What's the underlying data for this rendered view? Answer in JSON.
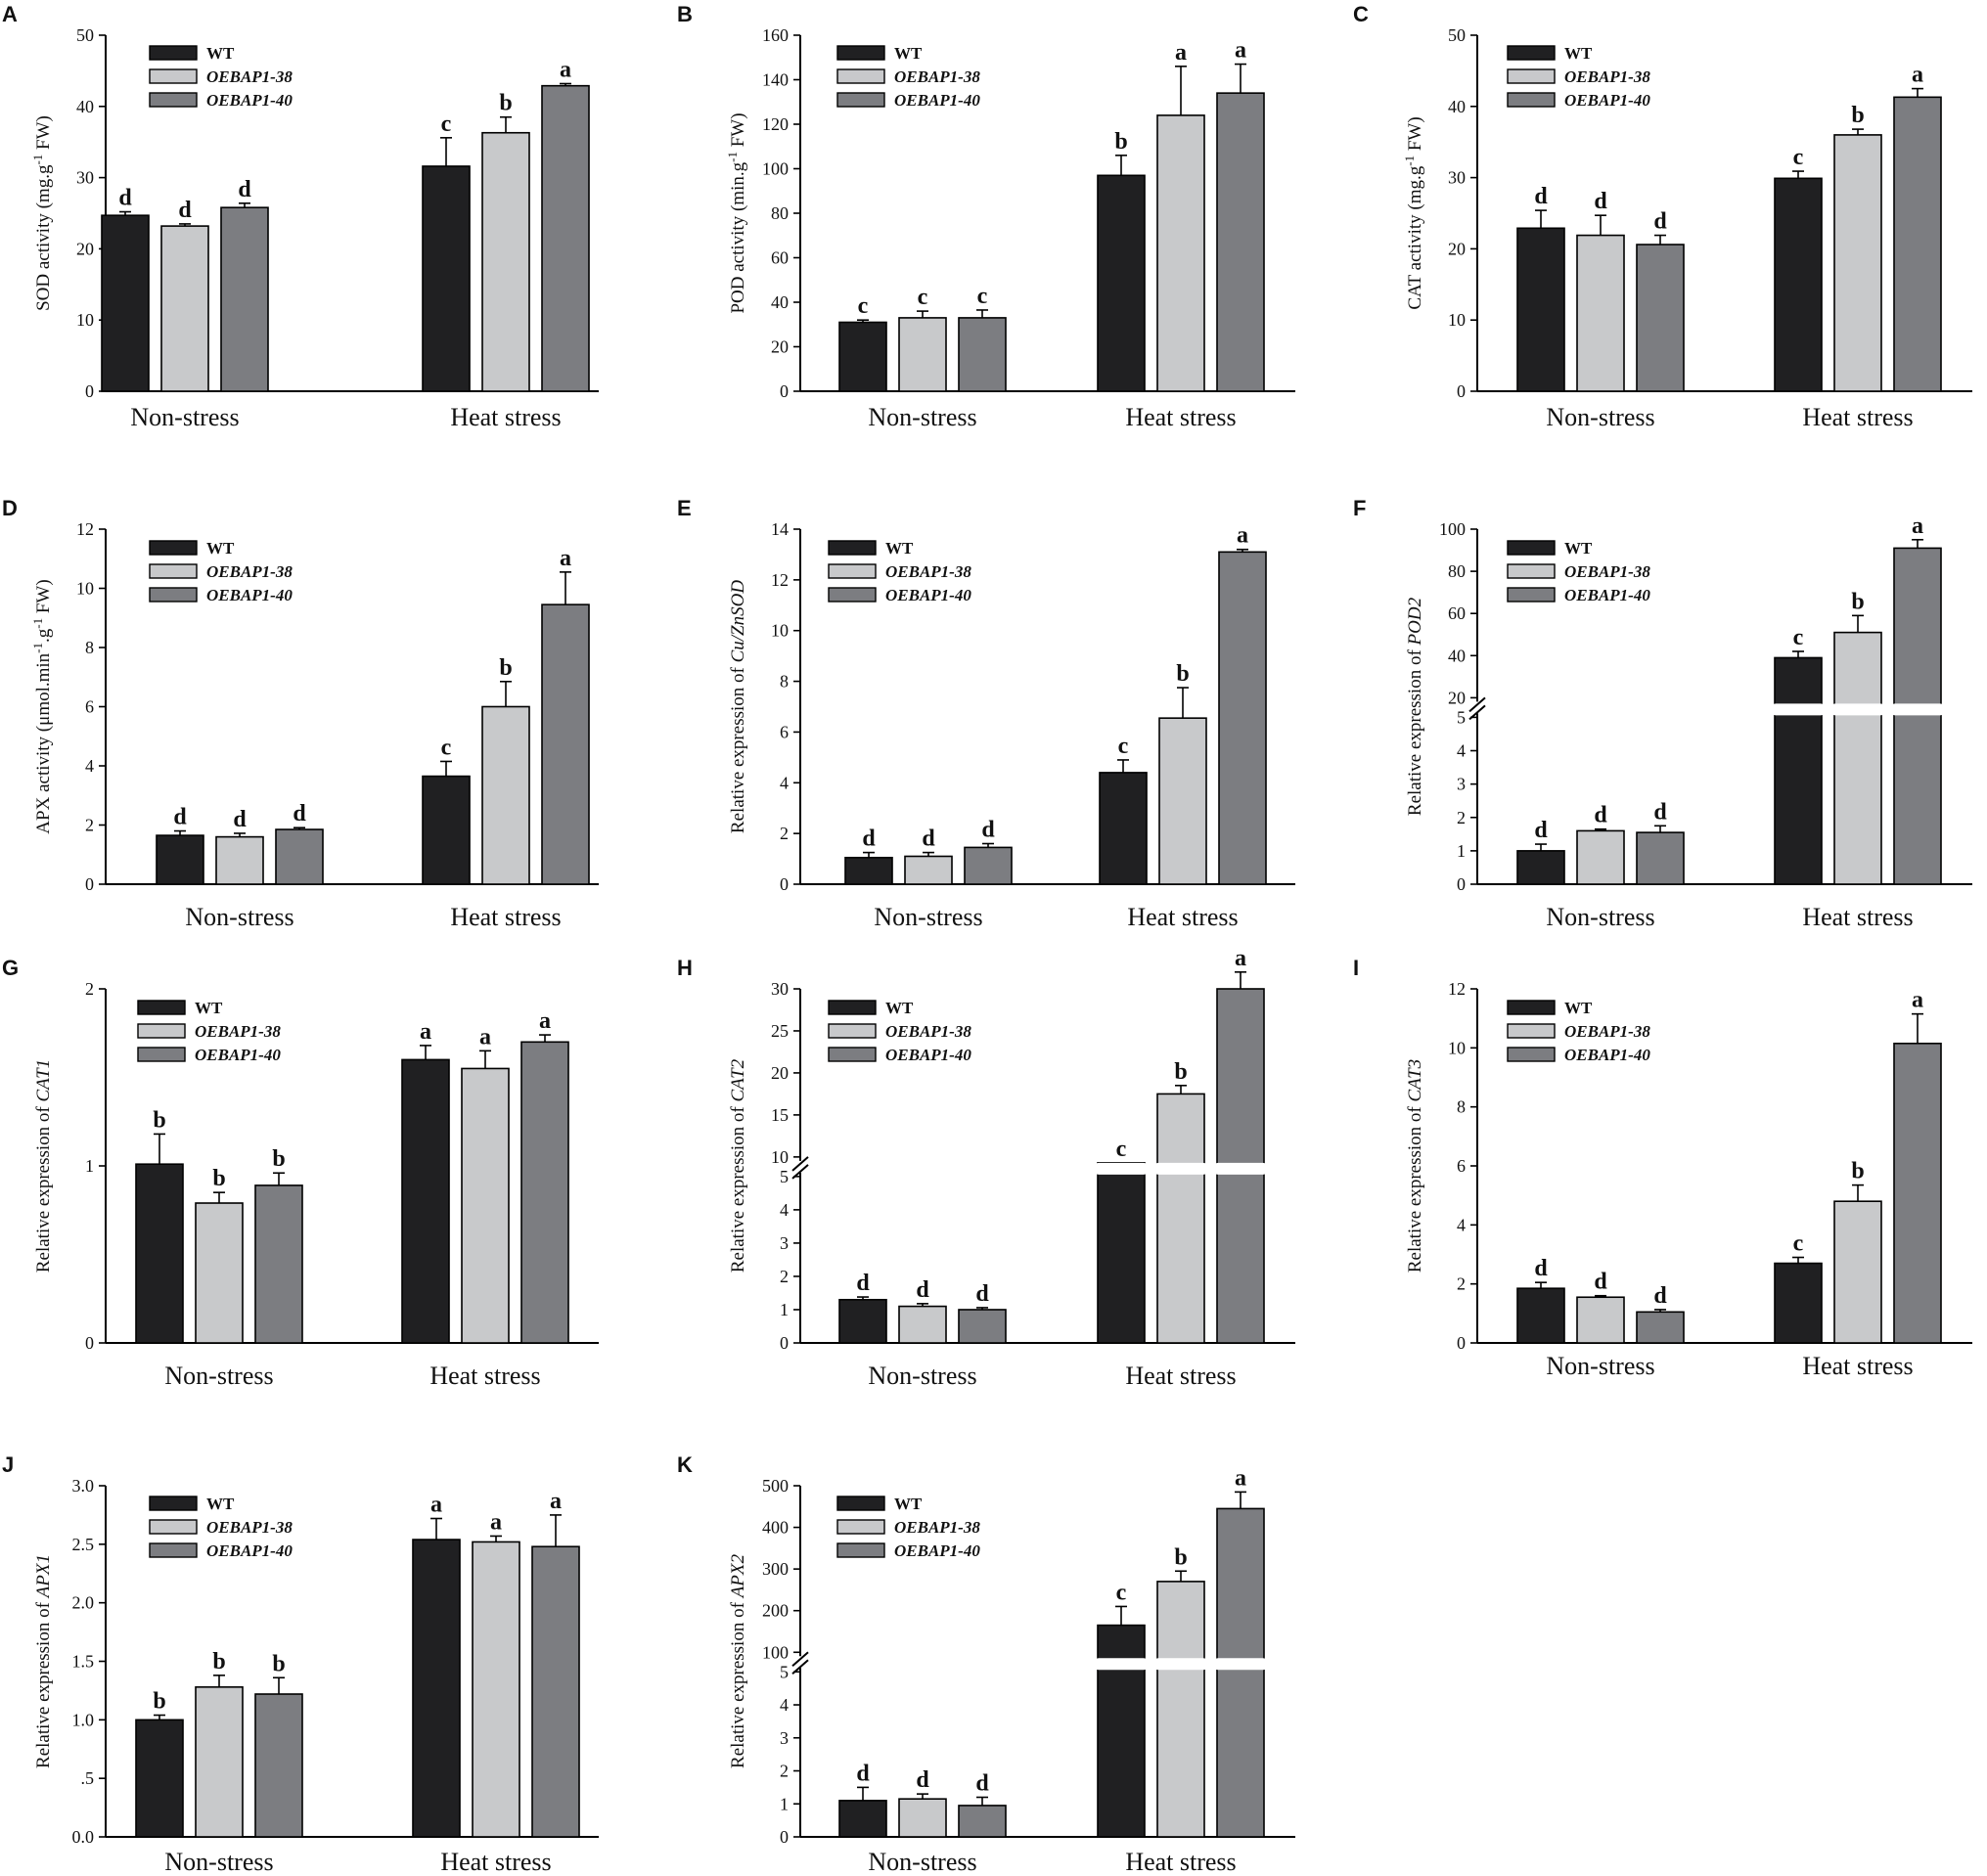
{
  "legend": {
    "series": [
      {
        "name": "WT",
        "color": "#202022",
        "italic": false
      },
      {
        "name": "OEBAP1-38",
        "color": "#c8c9cb",
        "italic": true
      },
      {
        "name": "OEBAP1-40",
        "color": "#7c7d81",
        "italic": true
      }
    ]
  },
  "chart_data": [
    {
      "panel": "A",
      "type": "bar",
      "ylabel": "SOD activity (mg.g-1 FW)",
      "ylabel_prefix": "SOD activity (mg.g",
      "ylabel_sup": "-1",
      "ylabel_suffix": " FW)",
      "categories": [
        "Non-stress",
        "Heat stress"
      ],
      "series": [
        {
          "name": "WT",
          "values": [
            24.7,
            31.6
          ],
          "errors": [
            0.5,
            4.0
          ],
          "letters": [
            "d",
            "c"
          ]
        },
        {
          "name": "OEBAP1-38",
          "values": [
            23.2,
            36.3
          ],
          "errors": [
            0.3,
            2.2
          ],
          "letters": [
            "d",
            "b"
          ]
        },
        {
          "name": "OEBAP1-40",
          "values": [
            25.8,
            42.9
          ],
          "errors": [
            0.6,
            0.3
          ],
          "letters": [
            "d",
            "a"
          ]
        }
      ],
      "ylim": [
        0,
        50
      ],
      "ticks": [
        {
          "v": 0,
          "label": "0"
        },
        {
          "v": 10,
          "label": "10"
        },
        {
          "v": 20,
          "label": "20"
        },
        {
          "v": 30,
          "label": "30"
        },
        {
          "v": 40,
          "label": "40"
        },
        {
          "v": 50,
          "label": "50"
        }
      ]
    },
    {
      "panel": "B",
      "type": "bar",
      "ylabel": "POD activity (min.g-1 FW)",
      "ylabel_prefix": "POD activity (min.g",
      "ylabel_sup": "-1",
      "ylabel_suffix": " FW)",
      "categories": [
        "Non-stress",
        "Heat stress"
      ],
      "series": [
        {
          "name": "WT",
          "values": [
            31,
            97
          ],
          "errors": [
            1.0,
            9.0
          ],
          "letters": [
            "c",
            "b"
          ]
        },
        {
          "name": "OEBAP1-38",
          "values": [
            33,
            124
          ],
          "errors": [
            3.0,
            22.0
          ],
          "letters": [
            "c",
            "a"
          ]
        },
        {
          "name": "OEBAP1-40",
          "values": [
            33,
            134
          ],
          "errors": [
            3.5,
            13.0
          ],
          "letters": [
            "c",
            "a"
          ]
        }
      ],
      "ylim": [
        0,
        160
      ],
      "ticks": [
        {
          "v": 0,
          "label": "0"
        },
        {
          "v": 20,
          "label": "20"
        },
        {
          "v": 40,
          "label": "40"
        },
        {
          "v": 60,
          "label": "60"
        },
        {
          "v": 80,
          "label": "80"
        },
        {
          "v": 100,
          "label": "100"
        },
        {
          "v": 120,
          "label": "120"
        },
        {
          "v": 140,
          "label": "140"
        },
        {
          "v": 160,
          "label": "160"
        }
      ]
    },
    {
      "panel": "C",
      "type": "bar",
      "ylabel": "CAT activity (mg.g-1 FW)",
      "ylabel_prefix": "CAT activity (mg.g",
      "ylabel_sup": "-1",
      "ylabel_suffix": " FW)",
      "categories": [
        "Non-stress",
        "Heat stress"
      ],
      "series": [
        {
          "name": "WT",
          "values": [
            22.9,
            29.9
          ],
          "errors": [
            2.5,
            1.0
          ],
          "letters": [
            "d",
            "c"
          ]
        },
        {
          "name": "OEBAP1-38",
          "values": [
            21.9,
            36.0
          ],
          "errors": [
            2.8,
            0.8
          ],
          "letters": [
            "d",
            "b"
          ]
        },
        {
          "name": "OEBAP1-40",
          "values": [
            20.6,
            41.3
          ],
          "errors": [
            1.3,
            1.2
          ],
          "letters": [
            "d",
            "a"
          ]
        }
      ],
      "ylim": [
        0,
        50
      ],
      "ticks": [
        {
          "v": 0,
          "label": "0"
        },
        {
          "v": 10,
          "label": "10"
        },
        {
          "v": 20,
          "label": "20"
        },
        {
          "v": 30,
          "label": "30"
        },
        {
          "v": 40,
          "label": "40"
        },
        {
          "v": 50,
          "label": "50"
        }
      ]
    },
    {
      "panel": "D",
      "type": "bar",
      "ylabel": "APX activity (μmol.min-1.g-1 FW)",
      "ylabel_prefix": "APX activity (μmol.min",
      "ylabel_sup": "-1",
      "ylabel_mid": ".g",
      "ylabel_sup2": "-1",
      "ylabel_suffix": " FW)",
      "categories": [
        "Non-stress",
        "Heat stress"
      ],
      "series": [
        {
          "name": "WT",
          "values": [
            1.65,
            3.65
          ],
          "errors": [
            0.15,
            0.5
          ],
          "letters": [
            "d",
            "c"
          ]
        },
        {
          "name": "OEBAP1-38",
          "values": [
            1.6,
            6.0
          ],
          "errors": [
            0.12,
            0.85
          ],
          "letters": [
            "d",
            "b"
          ]
        },
        {
          "name": "OEBAP1-40",
          "values": [
            1.85,
            9.45
          ],
          "errors": [
            0.06,
            1.1
          ],
          "letters": [
            "d",
            "a"
          ]
        }
      ],
      "ylim": [
        0,
        12
      ],
      "ticks": [
        {
          "v": 0,
          "label": "0"
        },
        {
          "v": 2,
          "label": "2"
        },
        {
          "v": 4,
          "label": "4"
        },
        {
          "v": 6,
          "label": "6"
        },
        {
          "v": 8,
          "label": "8"
        },
        {
          "v": 10,
          "label": "10"
        },
        {
          "v": 12,
          "label": "12"
        }
      ]
    },
    {
      "panel": "E",
      "type": "bar",
      "ylabel": "Relative expression of Cu/ZnSOD",
      "ylabel_prefix": "Relative expression of ",
      "ylabel_gene": "Cu/ZnSOD",
      "categories": [
        "Non-stress",
        "Heat stress"
      ],
      "series": [
        {
          "name": "WT",
          "values": [
            1.05,
            4.4
          ],
          "errors": [
            0.2,
            0.5
          ],
          "letters": [
            "d",
            "c"
          ]
        },
        {
          "name": "OEBAP1-38",
          "values": [
            1.1,
            6.55
          ],
          "errors": [
            0.15,
            1.2
          ],
          "letters": [
            "d",
            "b"
          ]
        },
        {
          "name": "OEBAP1-40",
          "values": [
            1.45,
            13.1
          ],
          "errors": [
            0.15,
            0.1
          ],
          "letters": [
            "d",
            "a"
          ]
        }
      ],
      "ylim": [
        0,
        14
      ],
      "ticks": [
        {
          "v": 0,
          "label": "0"
        },
        {
          "v": 2,
          "label": "2"
        },
        {
          "v": 4,
          "label": "4"
        },
        {
          "v": 6,
          "label": "6"
        },
        {
          "v": 8,
          "label": "8"
        },
        {
          "v": 10,
          "label": "10"
        },
        {
          "v": 12,
          "label": "12"
        },
        {
          "v": 14,
          "label": "14"
        }
      ]
    },
    {
      "panel": "F",
      "type": "bar",
      "ylabel": "Relative expression of POD2",
      "ylabel_prefix": "Relative expression of ",
      "ylabel_gene": "POD2",
      "categories": [
        "Non-stress",
        "Heat stress"
      ],
      "series": [
        {
          "name": "WT",
          "values": [
            1.0,
            39
          ],
          "errors": [
            0.2,
            3.0
          ],
          "letters": [
            "d",
            "c"
          ]
        },
        {
          "name": "OEBAP1-38",
          "values": [
            1.6,
            51
          ],
          "errors": [
            0.05,
            8.0
          ],
          "letters": [
            "d",
            "b"
          ]
        },
        {
          "name": "OEBAP1-40",
          "values": [
            1.55,
            91
          ],
          "errors": [
            0.2,
            4.0
          ],
          "letters": [
            "d",
            "a"
          ]
        }
      ],
      "ylim": [
        0,
        100
      ],
      "axis_break": {
        "lower_max": 5,
        "upper_min": 20,
        "upper_max": 100
      },
      "ticks": [
        {
          "v": 0,
          "label": "0"
        },
        {
          "v": 1,
          "label": "1"
        },
        {
          "v": 2,
          "label": "2"
        },
        {
          "v": 3,
          "label": "3"
        },
        {
          "v": 4,
          "label": "4"
        },
        {
          "v": 5,
          "label": "5"
        },
        {
          "v": 20,
          "label": "20"
        },
        {
          "v": 40,
          "label": "40"
        },
        {
          "v": 60,
          "label": "60"
        },
        {
          "v": 80,
          "label": "80"
        },
        {
          "v": 100,
          "label": "100"
        }
      ]
    },
    {
      "panel": "G",
      "type": "bar",
      "ylabel": "Relative expression of CAT1",
      "ylabel_prefix": "Relative expression of ",
      "ylabel_gene": "CAT1",
      "categories": [
        "Non-stress",
        "Heat stress"
      ],
      "series": [
        {
          "name": "WT",
          "values": [
            1.01,
            1.6
          ],
          "errors": [
            0.17,
            0.08
          ],
          "letters": [
            "b",
            "a"
          ]
        },
        {
          "name": "OEBAP1-38",
          "values": [
            0.79,
            1.55
          ],
          "errors": [
            0.06,
            0.1
          ],
          "letters": [
            "b",
            "a"
          ]
        },
        {
          "name": "OEBAP1-40",
          "values": [
            0.89,
            1.7
          ],
          "errors": [
            0.07,
            0.04
          ],
          "letters": [
            "b",
            "a"
          ]
        }
      ],
      "ylim": [
        0,
        2
      ],
      "ticks": [
        {
          "v": 0,
          "label": "0"
        },
        {
          "v": 1,
          "label": "1"
        },
        {
          "v": 2,
          "label": "2"
        }
      ]
    },
    {
      "panel": "H",
      "type": "bar",
      "ylabel": "Relative expression of CAT2",
      "ylabel_prefix": "Relative expression of ",
      "ylabel_gene": "CAT2",
      "categories": [
        "Non-stress",
        "Heat stress"
      ],
      "series": [
        {
          "name": "WT",
          "values": [
            1.3,
            9.0
          ],
          "errors": [
            0.08,
            0
          ],
          "letters": [
            "d",
            "c"
          ]
        },
        {
          "name": "OEBAP1-38",
          "values": [
            1.1,
            17.5
          ],
          "errors": [
            0.08,
            1.0
          ],
          "letters": [
            "d",
            "b"
          ]
        },
        {
          "name": "OEBAP1-40",
          "values": [
            1.0,
            30
          ],
          "errors": [
            0.06,
            2.0
          ],
          "letters": [
            "d",
            "a"
          ]
        }
      ],
      "ylim": [
        0,
        30
      ],
      "axis_break": {
        "lower_max": 5,
        "upper_min": 10,
        "upper_max": 30
      },
      "ticks": [
        {
          "v": 0,
          "label": "0"
        },
        {
          "v": 1,
          "label": "1"
        },
        {
          "v": 2,
          "label": "2"
        },
        {
          "v": 3,
          "label": "3"
        },
        {
          "v": 4,
          "label": "4"
        },
        {
          "v": 5,
          "label": "5"
        },
        {
          "v": 10,
          "label": "10"
        },
        {
          "v": 15,
          "label": "15"
        },
        {
          "v": 20,
          "label": "20"
        },
        {
          "v": 25,
          "label": "25"
        },
        {
          "v": 30,
          "label": "30"
        }
      ]
    },
    {
      "panel": "I",
      "type": "bar",
      "ylabel": "Relative expression of CAT3",
      "ylabel_prefix": "Relative expression of ",
      "ylabel_gene": "CAT3",
      "categories": [
        "Non-stress",
        "Heat stress"
      ],
      "series": [
        {
          "name": "WT",
          "values": [
            1.85,
            2.7
          ],
          "errors": [
            0.2,
            0.2
          ],
          "letters": [
            "d",
            "c"
          ]
        },
        {
          "name": "OEBAP1-38",
          "values": [
            1.55,
            4.8
          ],
          "errors": [
            0.05,
            0.55
          ],
          "letters": [
            "d",
            "b"
          ]
        },
        {
          "name": "OEBAP1-40",
          "values": [
            1.05,
            10.15
          ],
          "errors": [
            0.08,
            1.0
          ],
          "letters": [
            "d",
            "a"
          ]
        }
      ],
      "ylim": [
        0,
        12
      ],
      "ticks": [
        {
          "v": 0,
          "label": "0"
        },
        {
          "v": 2,
          "label": "2"
        },
        {
          "v": 4,
          "label": "4"
        },
        {
          "v": 6,
          "label": "6"
        },
        {
          "v": 8,
          "label": "8"
        },
        {
          "v": 10,
          "label": "10"
        },
        {
          "v": 12,
          "label": "12"
        }
      ]
    },
    {
      "panel": "J",
      "type": "bar",
      "ylabel": "Relative expression of APX1",
      "ylabel_prefix": "Relative expression of ",
      "ylabel_gene": "APX1",
      "categories": [
        "Non-stress",
        "Heat stress"
      ],
      "series": [
        {
          "name": "WT",
          "values": [
            1.0,
            2.54
          ],
          "errors": [
            0.04,
            0.18
          ],
          "letters": [
            "b",
            "a"
          ]
        },
        {
          "name": "OEBAP1-38",
          "values": [
            1.28,
            2.52
          ],
          "errors": [
            0.1,
            0.05
          ],
          "letters": [
            "b",
            "a"
          ]
        },
        {
          "name": "OEBAP1-40",
          "values": [
            1.22,
            2.48
          ],
          "errors": [
            0.14,
            0.27
          ],
          "letters": [
            "b",
            "a"
          ]
        }
      ],
      "ylim": [
        0,
        3
      ],
      "ticks": [
        {
          "v": 0,
          "label": "0.0"
        },
        {
          "v": 0.5,
          "label": ".5"
        },
        {
          "v": 1,
          "label": "1.0"
        },
        {
          "v": 1.5,
          "label": "1.5"
        },
        {
          "v": 2,
          "label": "2.0"
        },
        {
          "v": 2.5,
          "label": "2.5"
        },
        {
          "v": 3,
          "label": "3.0"
        }
      ]
    },
    {
      "panel": "K",
      "type": "bar",
      "ylabel": "Relative expression of APX2",
      "ylabel_prefix": "Relative expression of ",
      "ylabel_gene": "APX2",
      "categories": [
        "Non-stress",
        "Heat stress"
      ],
      "series": [
        {
          "name": "WT",
          "values": [
            1.1,
            165
          ],
          "errors": [
            0.4,
            45
          ],
          "letters": [
            "d",
            "c"
          ]
        },
        {
          "name": "OEBAP1-38",
          "values": [
            1.15,
            270
          ],
          "errors": [
            0.15,
            25
          ],
          "letters": [
            "d",
            "b"
          ]
        },
        {
          "name": "OEBAP1-40",
          "values": [
            0.95,
            445
          ],
          "errors": [
            0.25,
            40
          ],
          "letters": [
            "d",
            "a"
          ]
        }
      ],
      "ylim": [
        0,
        500
      ],
      "axis_break": {
        "lower_max": 5,
        "upper_min": 100,
        "upper_max": 500
      },
      "ticks": [
        {
          "v": 0,
          "label": "0"
        },
        {
          "v": 1,
          "label": "1"
        },
        {
          "v": 2,
          "label": "2"
        },
        {
          "v": 3,
          "label": "3"
        },
        {
          "v": 4,
          "label": "4"
        },
        {
          "v": 5,
          "label": "5"
        },
        {
          "v": 100,
          "label": "100"
        },
        {
          "v": 200,
          "label": "200"
        },
        {
          "v": 300,
          "label": "300"
        },
        {
          "v": 400,
          "label": "400"
        },
        {
          "v": 500,
          "label": "500"
        }
      ]
    }
  ]
}
